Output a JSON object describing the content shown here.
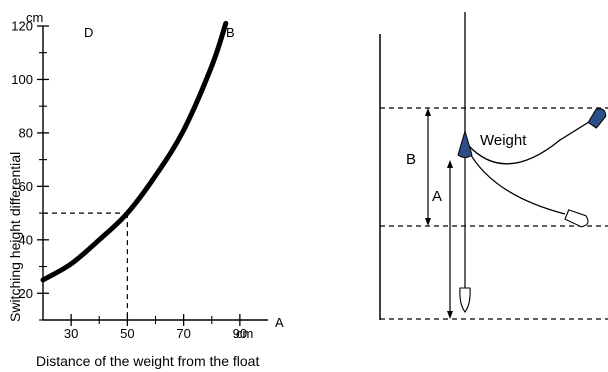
{
  "chart_data": {
    "type": "line",
    "title": "",
    "xlabel": "Distance of the weight from the float",
    "ylabel": "Switching height differential",
    "x_unit": "cm",
    "y_unit": "cm",
    "x_axis_letter": "A",
    "y_axis_letter": "D",
    "curve_end_letter": "B",
    "xlim": [
      20,
      100
    ],
    "ylim": [
      10,
      120
    ],
    "x_ticks": [
      30,
      50,
      70,
      90
    ],
    "y_ticks": [
      20,
      40,
      60,
      80,
      100,
      120
    ],
    "x_tick_labels": [
      "30",
      "50",
      "70",
      "90"
    ],
    "y_tick_labels": [
      "20",
      "40",
      "60",
      "80",
      "100",
      "120"
    ],
    "grid": false,
    "series": [
      {
        "x": [
          20,
          30,
          40,
          50,
          60,
          70,
          80,
          85
        ],
        "y": [
          25,
          31,
          40,
          50,
          64,
          81,
          105,
          121
        ]
      }
    ],
    "reference_point": {
      "x": 50,
      "y": 50
    }
  },
  "diagram": {
    "weight_label": "Weight",
    "label_a": "A",
    "label_b": "B"
  },
  "colors": {
    "weight_fill": "#2b4e86",
    "line": "#000000"
  }
}
